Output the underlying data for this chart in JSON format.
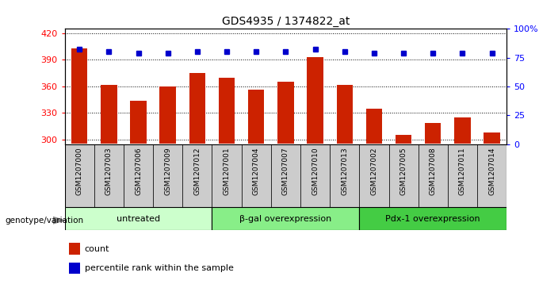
{
  "title": "GDS4935 / 1374822_at",
  "samples": [
    "GSM1207000",
    "GSM1207003",
    "GSM1207006",
    "GSM1207009",
    "GSM1207012",
    "GSM1207001",
    "GSM1207004",
    "GSM1207007",
    "GSM1207010",
    "GSM1207013",
    "GSM1207002",
    "GSM1207005",
    "GSM1207008",
    "GSM1207011",
    "GSM1207014"
  ],
  "counts": [
    403,
    362,
    344,
    360,
    375,
    370,
    356,
    365,
    393,
    362,
    335,
    305,
    319,
    325,
    308
  ],
  "percentile_ranks": [
    82,
    80,
    79,
    79,
    80,
    80,
    80,
    80,
    82,
    80,
    79,
    79,
    79,
    79,
    79
  ],
  "groups": [
    {
      "label": "untreated",
      "start": 0,
      "end": 5,
      "color": "#ccffcc"
    },
    {
      "label": "β-gal overexpression",
      "start": 5,
      "end": 10,
      "color": "#88ee88"
    },
    {
      "label": "Pdx-1 overexpression",
      "start": 10,
      "end": 15,
      "color": "#44cc44"
    }
  ],
  "bar_color": "#cc2200",
  "dot_color": "#0000cc",
  "ylim_left": [
    295,
    425
  ],
  "ylim_right": [
    0,
    100
  ],
  "yticks_left": [
    300,
    330,
    360,
    390,
    420
  ],
  "yticks_right": [
    0,
    25,
    50,
    75,
    100
  ],
  "ytick_labels_right": [
    "0",
    "25",
    "50",
    "75",
    "100%"
  ],
  "background_color": "#ffffff",
  "plot_bg_color": "#ffffff",
  "xtick_bg_color": "#cccccc",
  "genotype_label": "genotype/variation",
  "legend_count": "count",
  "legend_percentile": "percentile rank within the sample"
}
